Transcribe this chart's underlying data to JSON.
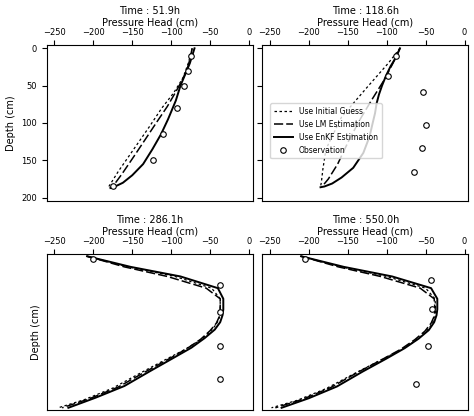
{
  "subplots": [
    {
      "title": "Time : 51.9h",
      "xlabel": "Pressure Head (cm)",
      "xlim": [
        -260,
        5
      ],
      "ylim": [
        205,
        -5
      ],
      "xticks": [
        -250,
        -200,
        -150,
        -100,
        -50,
        0
      ],
      "yticks": [
        0,
        50,
        100,
        150,
        200
      ],
      "initial_guess": {
        "x": [
          -73,
          -78,
          -85,
          -97,
          -112,
          -128,
          -148,
          -168,
          -180
        ],
        "y": [
          0,
          20,
          40,
          60,
          80,
          105,
          135,
          165,
          185
        ]
      },
      "lm_estimation": {
        "x": [
          -73,
          -76,
          -80,
          -87,
          -95,
          -105,
          -118,
          -132,
          -148,
          -163,
          -175
        ],
        "y": [
          0,
          15,
          30,
          45,
          60,
          78,
          98,
          120,
          145,
          168,
          185
        ]
      },
      "enkf_estimation": {
        "x": [
          -70,
          -73,
          -76,
          -80,
          -84,
          -88,
          -91,
          -94,
          -98,
          -104,
          -113,
          -124,
          -136,
          -150,
          -162,
          -172,
          -178
        ],
        "y": [
          0,
          10,
          20,
          30,
          40,
          50,
          60,
          70,
          80,
          95,
          115,
          135,
          155,
          170,
          180,
          185,
          187
        ]
      },
      "observations": {
        "x": [
          -75,
          -78,
          -83,
          -93,
          -110,
          -123,
          -175
        ],
        "y": [
          10,
          30,
          50,
          80,
          115,
          150,
          185
        ]
      }
    },
    {
      "title": "Time : 118.6h",
      "xlabel": "Pressure Head (cm)",
      "xlim": [
        -260,
        5
      ],
      "ylim": [
        205,
        -5
      ],
      "xticks": [
        -250,
        -200,
        -150,
        -100,
        -50,
        0
      ],
      "yticks": [
        0,
        50,
        100,
        150,
        200
      ],
      "initial_guess": {
        "x": [
          -83,
          -98,
          -125,
          -158,
          -178,
          -182,
          -184,
          -185
        ],
        "y": [
          0,
          20,
          52,
          92,
          135,
          162,
          180,
          185
        ]
      },
      "lm_estimation": {
        "x": [
          -83,
          -92,
          -103,
          -118,
          -133,
          -148,
          -163,
          -175,
          -183
        ],
        "y": [
          0,
          20,
          42,
          67,
          93,
          122,
          155,
          175,
          185
        ]
      },
      "enkf_estimation": {
        "x": [
          -83,
          -88,
          -95,
          -101,
          -106,
          -110,
          -113,
          -115,
          -118,
          -122,
          -130,
          -143,
          -158,
          -170,
          -180,
          -185
        ],
        "y": [
          0,
          12,
          24,
          37,
          50,
          62,
          74,
          87,
          100,
          118,
          140,
          160,
          173,
          181,
          185,
          186
        ]
      },
      "observations": {
        "x": [
          -88,
          -98,
          -53,
          -50,
          -55,
          -65
        ],
        "y": [
          10,
          37,
          58,
          103,
          133,
          165
        ]
      },
      "show_legend": true
    },
    {
      "title": "Time : 286.1h",
      "xlabel": "Pressure Head (cm)",
      "xlim": [
        -260,
        5
      ],
      "ylim": [
        290,
        -5
      ],
      "xticks": [
        -250,
        -200,
        -150,
        -100,
        -50,
        0
      ],
      "yticks": [],
      "initial_guess": {
        "x": [
          -208,
          -155,
          -95,
          -48,
          -37,
          -37,
          -38,
          -42,
          -50,
          -63,
          -82,
          -108,
          -140,
          -175,
          -212,
          -245
        ],
        "y": [
          0,
          20,
          38,
          60,
          80,
          100,
          115,
          128,
          142,
          158,
          175,
          195,
          220,
          248,
          270,
          285
        ]
      },
      "lm_estimation": {
        "x": [
          -208,
          -160,
          -105,
          -55,
          -37,
          -37,
          -38,
          -42,
          -50,
          -62,
          -80,
          -104,
          -134,
          -168,
          -205,
          -240
        ],
        "y": [
          0,
          20,
          38,
          60,
          80,
          100,
          113,
          126,
          140,
          156,
          174,
          194,
          218,
          246,
          268,
          285
        ]
      },
      "enkf_estimation": {
        "x": [
          -208,
          -152,
          -88,
          -40,
          -33,
          -33,
          -34,
          -37,
          -44,
          -57,
          -74,
          -98,
          -127,
          -160,
          -197,
          -232
        ],
        "y": [
          0,
          20,
          38,
          60,
          80,
          100,
          111,
          124,
          138,
          154,
          172,
          192,
          216,
          244,
          266,
          285
        ]
      },
      "observations": {
        "x": [
          -200,
          -37,
          -37,
          -37,
          -37
        ],
        "y": [
          5,
          55,
          105,
          168,
          230
        ]
      }
    },
    {
      "title": "Time : 550.0h",
      "xlabel": "Pressure Head (cm)",
      "xlim": [
        -260,
        5
      ],
      "ylim": [
        290,
        -5
      ],
      "xticks": [
        -250,
        -200,
        -150,
        -100,
        -50,
        0
      ],
      "yticks": [],
      "initial_guess": {
        "x": [
          -210,
          -158,
          -100,
          -50,
          -38,
          -37,
          -38,
          -42,
          -50,
          -63,
          -83,
          -110,
          -142,
          -178,
          -215,
          -248
        ],
        "y": [
          0,
          20,
          38,
          60,
          80,
          100,
          115,
          128,
          143,
          159,
          177,
          197,
          221,
          249,
          271,
          285
        ]
      },
      "lm_estimation": {
        "x": [
          -210,
          -162,
          -108,
          -57,
          -39,
          -38,
          -39,
          -43,
          -51,
          -64,
          -82,
          -107,
          -138,
          -172,
          -208,
          -243
        ],
        "y": [
          0,
          20,
          38,
          60,
          80,
          100,
          113,
          126,
          141,
          157,
          175,
          195,
          219,
          247,
          269,
          285
        ]
      },
      "enkf_estimation": {
        "x": [
          -210,
          -155,
          -93,
          -43,
          -35,
          -35,
          -36,
          -39,
          -46,
          -59,
          -77,
          -101,
          -131,
          -164,
          -200,
          -235
        ],
        "y": [
          0,
          20,
          38,
          60,
          80,
          100,
          111,
          124,
          139,
          155,
          173,
          193,
          217,
          245,
          267,
          285
        ]
      },
      "observations": {
        "x": [
          -205,
          -43,
          -42,
          -47,
          -62
        ],
        "y": [
          5,
          45,
          100,
          168,
          240
        ]
      }
    }
  ],
  "legend": {
    "initial_guess_label": "Use Initial Guess",
    "lm_label": "Use LM Estimation",
    "enkf_label": "Use EnKF Estimation",
    "obs_label": "Observation"
  },
  "ylabel": "Depth (cm)",
  "fig_background": "#ffffff"
}
